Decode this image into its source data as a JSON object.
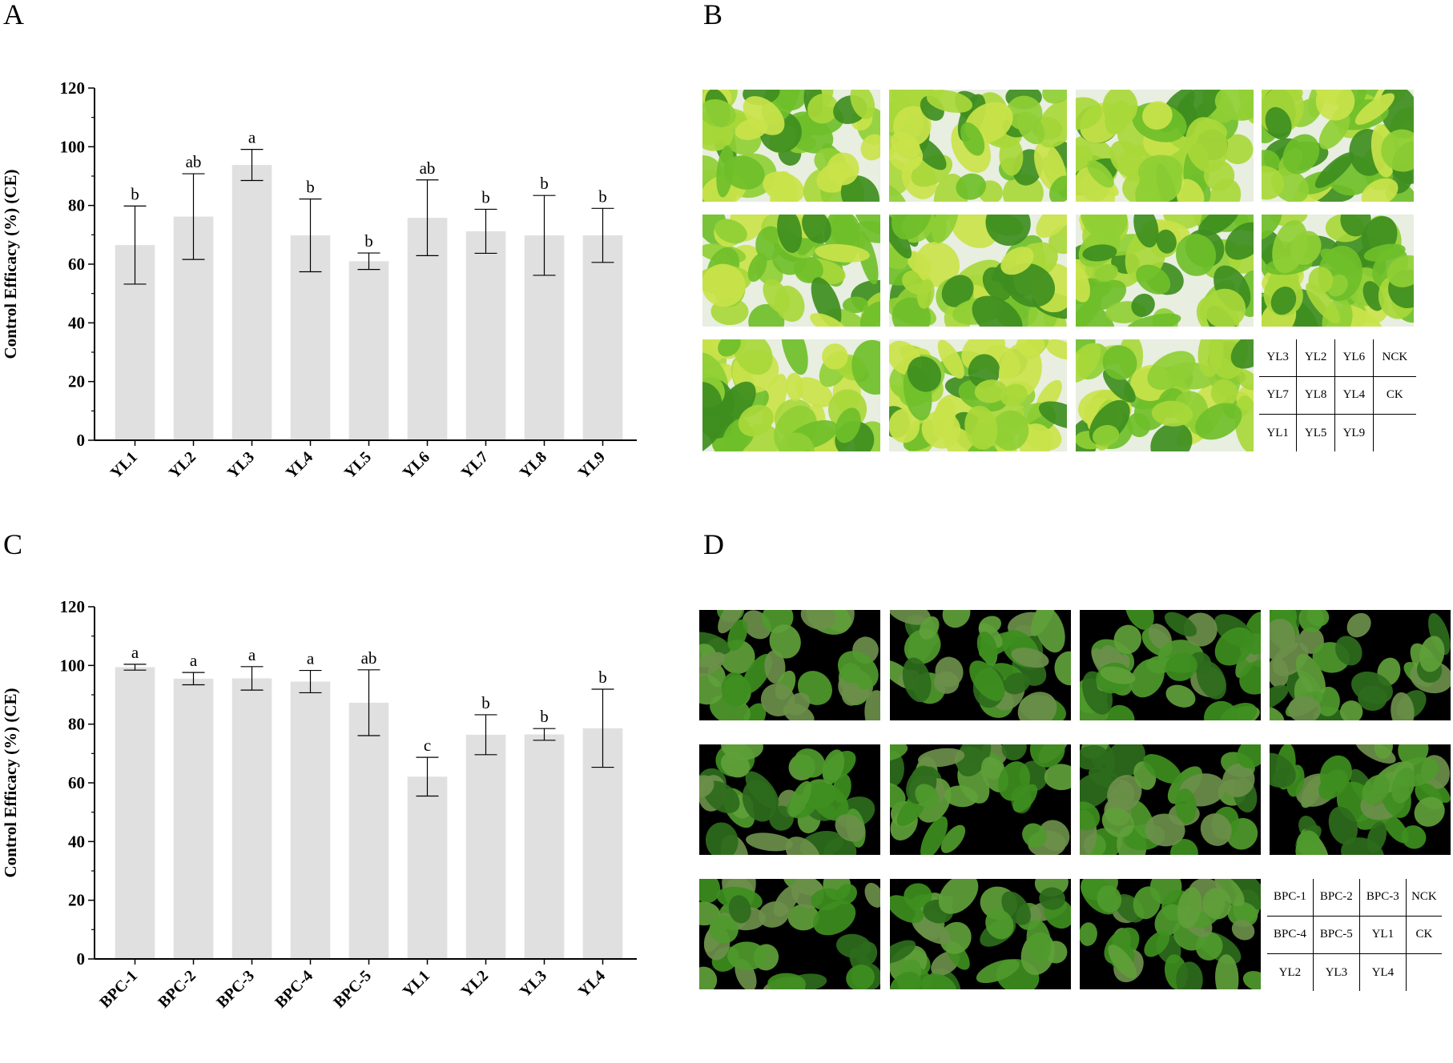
{
  "panels": {
    "a_label": "A",
    "b_label": "B",
    "c_label": "C",
    "d_label": "D"
  },
  "chart_data": [
    {
      "type": "bar",
      "panel": "A",
      "title": "",
      "xlabel": "",
      "ylabel": "Control Efficacy (%) (CE)",
      "ylim": [
        0,
        120
      ],
      "yticks": [
        0,
        20,
        40,
        60,
        80,
        100,
        120
      ],
      "grid": false,
      "categories": [
        "YL1",
        "YL2",
        "YL3",
        "YL4",
        "YL5",
        "YL6",
        "YL7",
        "YL8",
        "YL9"
      ],
      "values": [
        66.5,
        76.2,
        93.8,
        69.8,
        61.0,
        75.8,
        71.2,
        69.8,
        69.8
      ],
      "error": [
        13.3,
        14.6,
        5.3,
        12.4,
        2.8,
        12.9,
        7.5,
        13.6,
        9.2
      ],
      "letters": [
        "b",
        "ab",
        "a",
        "b",
        "b",
        "ab",
        "b",
        "b",
        "b"
      ],
      "color": "#e0e0e0"
    },
    {
      "type": "bar",
      "panel": "C",
      "title": "",
      "xlabel": "",
      "ylabel": "Control Efficacy (%) (CE)",
      "ylim": [
        0,
        120
      ],
      "yticks": [
        0,
        20,
        40,
        60,
        80,
        100,
        120
      ],
      "grid": false,
      "categories": [
        "BPC-1",
        "BPC-2",
        "BPC-3",
        "BPC-4",
        "BPC-5",
        "YL1",
        "YL2",
        "YL3",
        "YL4"
      ],
      "values": [
        99.4,
        95.5,
        95.6,
        94.5,
        87.3,
        62.1,
        76.4,
        76.5,
        78.6
      ],
      "error": [
        1.0,
        2.1,
        4.0,
        3.8,
        11.2,
        6.6,
        6.8,
        2.0,
        13.3
      ],
      "letters": [
        "a",
        "a",
        "a",
        "a",
        "ab",
        "c",
        "b",
        "b",
        "b"
      ],
      "color": "#e0e0e0"
    }
  ],
  "legend_b": {
    "rows": [
      [
        "YL3",
        "YL2",
        "YL6",
        "NCK"
      ],
      [
        "YL7",
        "YL8",
        "YL4",
        "CK"
      ],
      [
        "YL1",
        "YL5",
        "YL9",
        ""
      ]
    ]
  },
  "legend_d": {
    "rows": [
      [
        "BPC-1",
        "BPC-2",
        "BPC-3",
        "NCK"
      ],
      [
        "BPC-4",
        "BPC-5",
        "YL1",
        "CK"
      ],
      [
        "YL2",
        "YL3",
        "YL4",
        ""
      ]
    ]
  },
  "colors": {
    "bar": "#e0e0e0",
    "plant_light": "#a8d83a",
    "plant_mid": "#6fbf2a",
    "plant_dark": "#3e8e1f",
    "photo_bg_b": "#e8eee0",
    "photo_bg_d": "#000000"
  }
}
